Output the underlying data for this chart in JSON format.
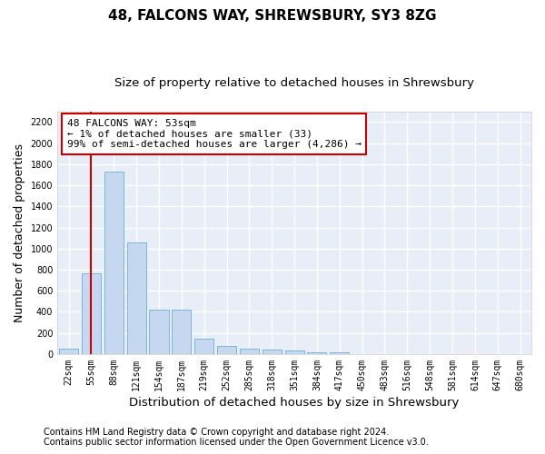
{
  "title": "48, FALCONS WAY, SHREWSBURY, SY3 8ZG",
  "subtitle": "Size of property relative to detached houses in Shrewsbury",
  "xlabel": "Distribution of detached houses by size in Shrewsbury",
  "ylabel": "Number of detached properties",
  "bin_labels": [
    "22sqm",
    "55sqm",
    "88sqm",
    "121sqm",
    "154sqm",
    "187sqm",
    "219sqm",
    "252sqm",
    "285sqm",
    "318sqm",
    "351sqm",
    "384sqm",
    "417sqm",
    "450sqm",
    "483sqm",
    "516sqm",
    "548sqm",
    "581sqm",
    "614sqm",
    "647sqm",
    "680sqm"
  ],
  "bar_values": [
    50,
    770,
    1730,
    1060,
    420,
    420,
    150,
    80,
    50,
    40,
    30,
    20,
    20,
    0,
    0,
    0,
    0,
    0,
    0,
    0,
    0
  ],
  "bar_color": "#c5d8f0",
  "bar_edge_color": "#6baed6",
  "ylim": [
    0,
    2300
  ],
  "yticks": [
    0,
    200,
    400,
    600,
    800,
    1000,
    1200,
    1400,
    1600,
    1800,
    2000,
    2200
  ],
  "annotation_text_line1": "48 FALCONS WAY: 53sqm",
  "annotation_text_line2": "← 1% of detached houses are smaller (33)",
  "annotation_text_line3": "99% of semi-detached houses are larger (4,286) →",
  "annotation_box_color": "white",
  "annotation_box_edge": "#cc0000",
  "property_line_color": "#cc0000",
  "footer_line1": "Contains HM Land Registry data © Crown copyright and database right 2024.",
  "footer_line2": "Contains public sector information licensed under the Open Government Licence v3.0.",
  "background_color": "#e8eef8",
  "grid_color": "white",
  "title_fontsize": 11,
  "subtitle_fontsize": 9.5,
  "ylabel_fontsize": 9,
  "xlabel_fontsize": 9.5,
  "tick_fontsize": 7,
  "annotation_fontsize": 8,
  "footer_fontsize": 7
}
